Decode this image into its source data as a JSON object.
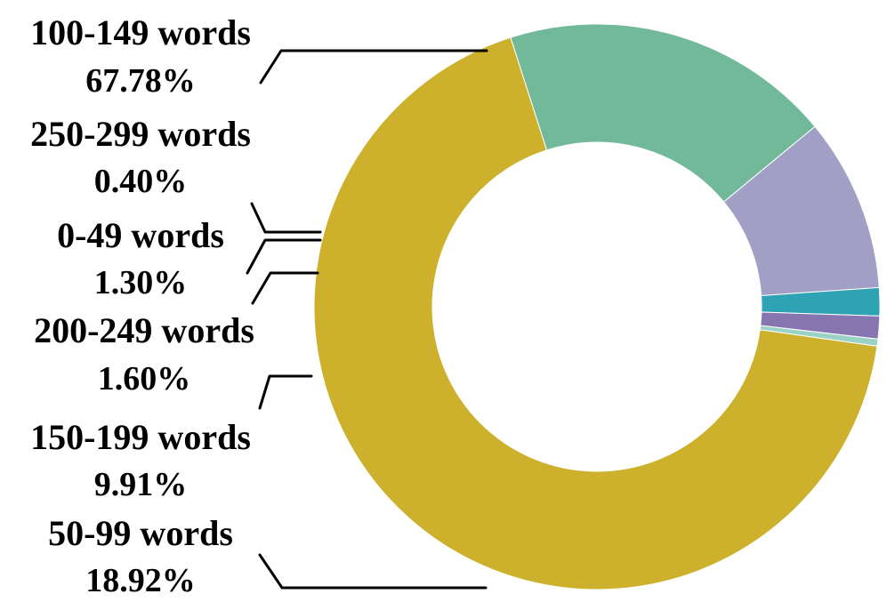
{
  "chart_data": {
    "type": "pie",
    "variant": "donut",
    "title": "",
    "categories": [
      "100-149 words",
      "50-99 words",
      "150-199 words",
      "200-249 words",
      "0-49 words",
      "250-299 words"
    ],
    "values": [
      67.78,
      18.92,
      9.91,
      1.6,
      1.3,
      0.4
    ],
    "labels": [
      "67.78%",
      "18.92%",
      "9.91%",
      "1.60%",
      "1.30%",
      "0.40%"
    ],
    "colors": [
      "#CDB02B",
      "#72B99A",
      "#A19FC6",
      "#2DA3B3",
      "#8775B2",
      "#9BD2C6"
    ],
    "legend_placement": "left labels with leader lines"
  }
}
